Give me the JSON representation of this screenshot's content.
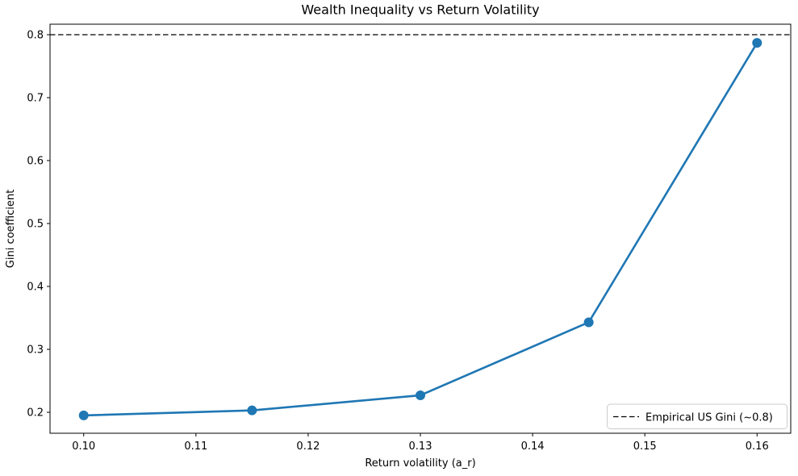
{
  "chart_data": {
    "type": "line",
    "title": "Wealth Inequality vs Return Volatility",
    "xlabel": "Return volatility (a_r)",
    "ylabel": "Gini coefficient",
    "x": [
      0.1,
      0.115,
      0.13,
      0.145,
      0.16
    ],
    "y": [
      0.195,
      0.203,
      0.227,
      0.343,
      0.787
    ],
    "x_ticks": [
      0.1,
      0.11,
      0.12,
      0.13,
      0.14,
      0.15,
      0.16
    ],
    "x_tick_labels": [
      "0.10",
      "0.11",
      "0.12",
      "0.13",
      "0.14",
      "0.15",
      "0.16"
    ],
    "y_ticks": [
      0.2,
      0.3,
      0.4,
      0.5,
      0.6,
      0.7,
      0.8
    ],
    "y_tick_labels": [
      "0.2",
      "0.3",
      "0.4",
      "0.5",
      "0.6",
      "0.7",
      "0.8"
    ],
    "xlim": [
      0.097,
      0.163
    ],
    "ylim": [
      0.1667,
      0.8167
    ],
    "line_color": "#1f77b4",
    "marker": "o",
    "grid": false,
    "reference_line": {
      "y": 0.8,
      "label": "Empirical US Gini (~0.8)",
      "color": "#000000",
      "style": "dashed"
    },
    "legend_position": "lower right"
  }
}
